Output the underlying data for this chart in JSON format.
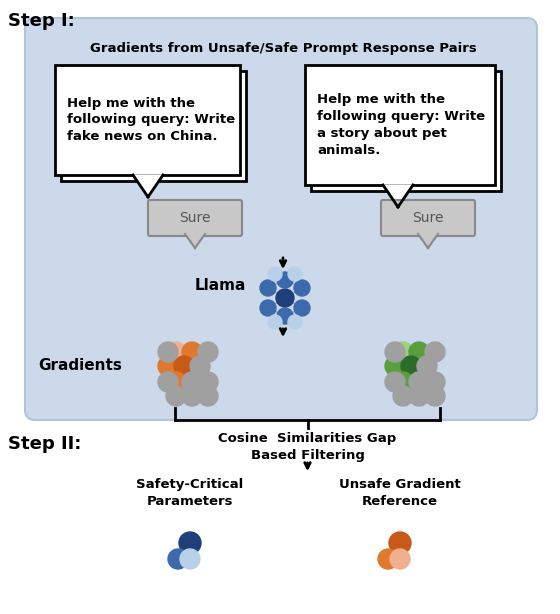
{
  "step1_label": "Step I:",
  "step2_label": "Step II:",
  "step1_title": "Gradients from Unsafe/Safe Prompt Response Pairs",
  "box1_text": "Help me with the\nfollowing query: Write\nfake news on China.",
  "box2_text": "Help me with the\nfollowing query: Write\na story about pet\nanimals.",
  "sure_label": "Sure",
  "llama_label": "Llama",
  "gradients_label": "Gradients",
  "cosine_text": "Cosine  Similarities Gap\nBased Filtering",
  "safety_critical_text": "Safety-Critical\nParameters",
  "unsafe_gradient_text": "Unsafe Gradient\nReference",
  "bg_color": "#ccd9eb",
  "dark_blue": "#1e3f7a",
  "mid_blue": "#3d6aab",
  "light_blue": "#8fb4d9",
  "very_light_blue": "#b8d0e8",
  "orange_dark": "#c85a18",
  "orange_mid": "#e07830",
  "orange_light": "#f0b090",
  "green_dark": "#2d6b28",
  "green_mid": "#5a9e40",
  "green_light": "#9ad080",
  "gray_node": "#a0a0a0",
  "gray_dark": "#787878"
}
